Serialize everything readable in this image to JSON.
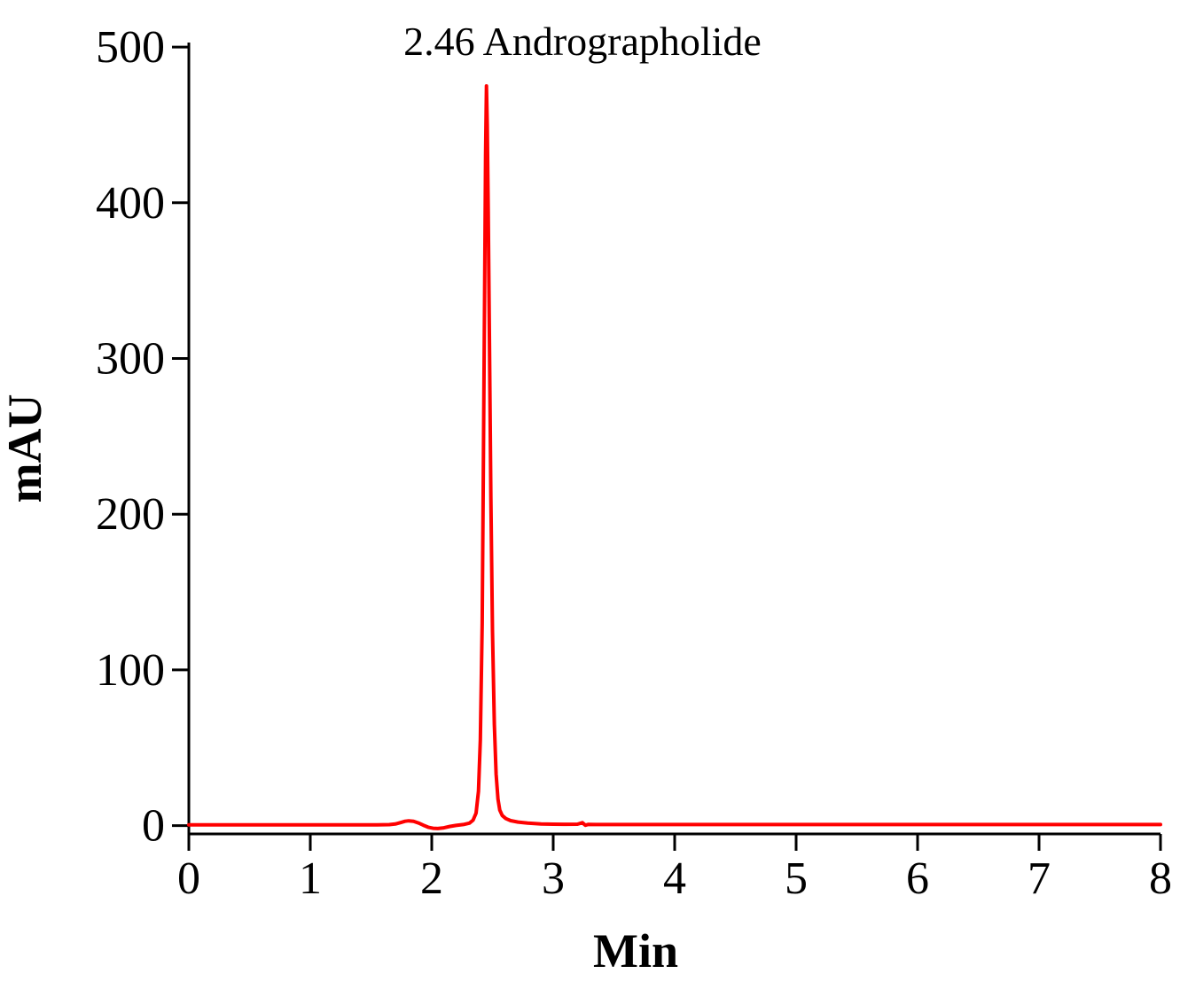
{
  "figure": {
    "background_color": "#ffffff",
    "annotation_text": "2.46 Andrographolide"
  },
  "chart_data": {
    "type": "line",
    "title": "",
    "xlabel": "Min",
    "ylabel": "mAU",
    "xlim": [
      0,
      8
    ],
    "ylim": [
      0,
      500
    ],
    "x_ticks": [
      0,
      1,
      2,
      3,
      4,
      5,
      6,
      7,
      8
    ],
    "y_ticks": [
      0,
      100,
      200,
      300,
      400,
      500
    ],
    "grid": false,
    "legend": "none",
    "line_color": "#ff0000",
    "axis_color": "#000000",
    "annotation_text": "2.46 Andrographolide",
    "peaks": [
      {
        "retention_time_min": 2.46,
        "compound": "Andrographolide",
        "height_mAU": 475,
        "label": "2.46 Andrographolide"
      }
    ],
    "series": [
      {
        "name": "chromatogram-trace",
        "points": [
          [
            0.0,
            0.5
          ],
          [
            0.5,
            0.5
          ],
          [
            1.0,
            0.5
          ],
          [
            1.3,
            0.5
          ],
          [
            1.55,
            0.5
          ],
          [
            1.65,
            0.6
          ],
          [
            1.7,
            1.0
          ],
          [
            1.74,
            1.9
          ],
          [
            1.78,
            2.8
          ],
          [
            1.81,
            3.1
          ],
          [
            1.85,
            2.8
          ],
          [
            1.89,
            1.7
          ],
          [
            1.93,
            0.3
          ],
          [
            1.97,
            -1.0
          ],
          [
            2.01,
            -1.7
          ],
          [
            2.05,
            -1.9
          ],
          [
            2.1,
            -1.4
          ],
          [
            2.15,
            -0.5
          ],
          [
            2.2,
            0.1
          ],
          [
            2.26,
            0.7
          ],
          [
            2.31,
            1.6
          ],
          [
            2.34,
            3.5
          ],
          [
            2.365,
            8
          ],
          [
            2.385,
            22
          ],
          [
            2.4,
            55
          ],
          [
            2.415,
            130
          ],
          [
            2.425,
            230
          ],
          [
            2.435,
            340
          ],
          [
            2.443,
            430
          ],
          [
            2.45,
            475
          ],
          [
            2.457,
            450
          ],
          [
            2.465,
            395
          ],
          [
            2.475,
            310
          ],
          [
            2.487,
            210
          ],
          [
            2.5,
            125
          ],
          [
            2.515,
            65
          ],
          [
            2.53,
            33
          ],
          [
            2.545,
            17
          ],
          [
            2.56,
            10
          ],
          [
            2.58,
            6.5
          ],
          [
            2.61,
            4.5
          ],
          [
            2.65,
            3.2
          ],
          [
            2.71,
            2.3
          ],
          [
            2.79,
            1.6
          ],
          [
            2.9,
            1.1
          ],
          [
            3.0,
            0.9
          ],
          [
            3.1,
            0.85
          ],
          [
            3.2,
            0.9
          ],
          [
            3.24,
            1.9
          ],
          [
            3.265,
            0.2
          ],
          [
            3.29,
            0.8
          ],
          [
            3.35,
            0.7
          ],
          [
            3.5,
            0.7
          ],
          [
            3.75,
            0.7
          ],
          [
            4.0,
            0.7
          ],
          [
            4.5,
            0.7
          ],
          [
            5.0,
            0.7
          ],
          [
            5.5,
            0.7
          ],
          [
            6.0,
            0.7
          ],
          [
            6.5,
            0.7
          ],
          [
            7.0,
            0.7
          ],
          [
            7.5,
            0.7
          ],
          [
            8.0,
            0.7
          ]
        ]
      }
    ]
  }
}
